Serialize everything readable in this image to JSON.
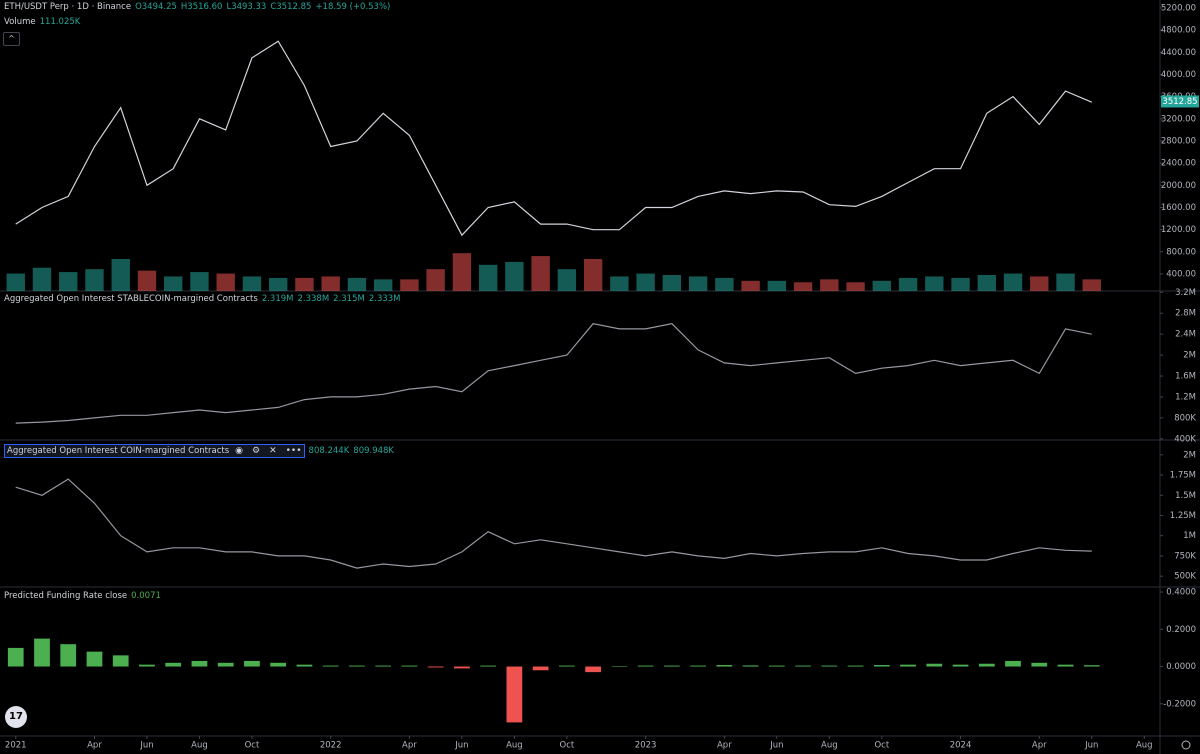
{
  "chart_data": [
    {
      "type": "line",
      "title": "ETH/USDT Perp · 1D · Binance",
      "legend": [
        "O3494.25",
        "H3516.60",
        "L3493.33",
        "C3512.85",
        "+18.59 (+0.53%)"
      ],
      "color": "#d1d4dc",
      "x": [
        0,
        1,
        2,
        3,
        4,
        5,
        6,
        7,
        8,
        9,
        10,
        11,
        12,
        13,
        14,
        15,
        16,
        17,
        18,
        19,
        20,
        21,
        22,
        23,
        24,
        25,
        26,
        27,
        28,
        29,
        30,
        31,
        32,
        33,
        34,
        35,
        36,
        37,
        38,
        39,
        40,
        41
      ],
      "values": [
        1300,
        1600,
        1800,
        2700,
        3400,
        2000,
        2300,
        3200,
        3000,
        4300,
        4600,
        3800,
        2700,
        2800,
        3300,
        2900,
        2000,
        1100,
        1600,
        1700,
        1300,
        1300,
        1200,
        1200,
        1600,
        1600,
        1800,
        1900,
        1850,
        1900,
        1880,
        1650,
        1620,
        1800,
        2050,
        2300,
        2300,
        3300,
        3600,
        3100,
        3700,
        3500
      ],
      "xlim": [
        -0.6,
        43.6
      ],
      "ylim": [
        93,
        5344
      ],
      "yticks": [
        {
          "value": 400,
          "label": "400.00"
        },
        {
          "value": 800,
          "label": "800.00"
        },
        {
          "value": 1200,
          "label": "1200.00"
        },
        {
          "value": 1600,
          "label": "1600.00"
        },
        {
          "value": 2000,
          "label": "2000.00"
        },
        {
          "value": 2400,
          "label": "2400.00"
        },
        {
          "value": 2800,
          "label": "2800.00"
        },
        {
          "value": 3200,
          "label": "3200.00"
        },
        {
          "value": 3600,
          "label": "3600.00"
        },
        {
          "value": 4000,
          "label": "4000.00"
        },
        {
          "value": 4400,
          "label": "4400.00"
        },
        {
          "value": 4800,
          "label": "4800.00"
        },
        {
          "value": 5200,
          "label": "5200.00"
        }
      ],
      "last_price": {
        "value": 3512.85,
        "label": "3512.85"
      },
      "volume": {
        "title": "Volume",
        "legend": "111.025K",
        "up_color": "#26a69a",
        "down_color": "#ef5350",
        "ylim": [
          0,
          20000000
        ],
        "values": [
          1200000,
          1600000,
          1300000,
          1500000,
          2200000,
          1400000,
          1000000,
          1300000,
          1200000,
          1000000,
          900000,
          900000,
          1000000,
          900000,
          800000,
          800000,
          1500000,
          2600000,
          1800000,
          2000000,
          2400000,
          1500000,
          2200000,
          1000000,
          1200000,
          1100000,
          1000000,
          900000,
          700000,
          700000,
          600000,
          800000,
          600000,
          700000,
          900000,
          1000000,
          900000,
          1100000,
          1200000,
          1000000,
          1200000,
          800000
        ]
      }
    },
    {
      "type": "line",
      "title": "Aggregated Open Interest STABLECOIN-margined Contracts",
      "legend": [
        "2.319M",
        "2.338M",
        "2.315M",
        "2.333M"
      ],
      "color": "#9598a1",
      "x": [
        0,
        1,
        2,
        3,
        4,
        5,
        6,
        7,
        8,
        9,
        10,
        11,
        12,
        13,
        14,
        15,
        16,
        17,
        18,
        19,
        20,
        21,
        22,
        23,
        24,
        25,
        26,
        27,
        28,
        29,
        30,
        31,
        32,
        33,
        34,
        35,
        36,
        37,
        38,
        39,
        40,
        41
      ],
      "values": [
        700000,
        720000,
        750000,
        800000,
        850000,
        850000,
        900000,
        950000,
        900000,
        950000,
        1000000,
        1150000,
        1200000,
        1200000,
        1250000,
        1350000,
        1400000,
        1300000,
        1700000,
        1800000,
        1900000,
        2000000,
        2600000,
        2500000,
        2500000,
        2600000,
        2100000,
        1850000,
        1800000,
        1850000,
        1900000,
        1950000,
        1650000,
        1750000,
        1800000,
        1900000,
        1800000,
        1850000,
        1900000,
        1650000,
        2500000,
        2400000
      ],
      "xlim": [
        -0.6,
        43.6
      ],
      "ylim": [
        377000,
        3225000
      ],
      "yticks": [
        {
          "value": 400000,
          "label": "400K"
        },
        {
          "value": 800000,
          "label": "800K"
        },
        {
          "value": 1200000,
          "label": "1.2M"
        },
        {
          "value": 1600000,
          "label": "1.6M"
        },
        {
          "value": 2000000,
          "label": "2M"
        },
        {
          "value": 2400000,
          "label": "2.4M"
        },
        {
          "value": 2800000,
          "label": "2.8M"
        },
        {
          "value": 3200000,
          "label": "3.2M"
        }
      ]
    },
    {
      "type": "line",
      "title": "Aggregated Open Interest COIN-margined Contracts",
      "legend": [
        "808.244K",
        "809.948K"
      ],
      "color": "#9598a1",
      "x": [
        0,
        1,
        2,
        3,
        4,
        5,
        6,
        7,
        8,
        9,
        10,
        11,
        12,
        13,
        14,
        15,
        16,
        17,
        18,
        19,
        20,
        21,
        22,
        23,
        24,
        25,
        26,
        27,
        28,
        29,
        30,
        31,
        32,
        33,
        34,
        35,
        36,
        37,
        38,
        39,
        40,
        41
      ],
      "values": [
        1600000,
        1500000,
        1700000,
        1400000,
        1000000,
        800000,
        850000,
        850000,
        800000,
        800000,
        750000,
        750000,
        700000,
        600000,
        650000,
        620000,
        650000,
        800000,
        1050000,
        900000,
        950000,
        900000,
        850000,
        800000,
        750000,
        800000,
        750000,
        720000,
        780000,
        750000,
        780000,
        800000,
        800000,
        850000,
        780000,
        750000,
        700000,
        700000,
        780000,
        850000,
        820000,
        810000
      ],
      "xlim": [
        -0.6,
        43.6
      ],
      "ylim": [
        366000,
        2183000
      ],
      "yticks": [
        {
          "value": 500000,
          "label": "500K"
        },
        {
          "value": 750000,
          "label": "750K"
        },
        {
          "value": 1000000,
          "label": "1M"
        },
        {
          "value": 1250000,
          "label": "1.25M"
        },
        {
          "value": 1500000,
          "label": "1.5M"
        },
        {
          "value": 1750000,
          "label": "1.75M"
        },
        {
          "value": 2000000,
          "label": "2M"
        }
      ]
    },
    {
      "type": "bar",
      "title": "Predicted Funding Rate close",
      "legend": [
        "0.0071"
      ],
      "color": "#4caf50",
      "negative_color": "#ef5350",
      "x": [
        0,
        1,
        2,
        3,
        4,
        5,
        6,
        7,
        8,
        9,
        10,
        11,
        12,
        13,
        14,
        15,
        16,
        17,
        18,
        19,
        20,
        21,
        22,
        23,
        24,
        25,
        26,
        27,
        28,
        29,
        30,
        31,
        32,
        33,
        34,
        35,
        36,
        37,
        38,
        39,
        40,
        41
      ],
      "values": [
        0.1,
        0.15,
        0.12,
        0.08,
        0.06,
        0.01,
        0.02,
        0.03,
        0.02,
        0.03,
        0.02,
        0.01,
        0.005,
        0.005,
        0.005,
        0.005,
        -0.005,
        -0.01,
        0.005,
        -0.3,
        -0.02,
        0.005,
        -0.03,
        0.002,
        0.005,
        0.005,
        0.005,
        0.008,
        0.006,
        0.005,
        0.005,
        0.005,
        0.005,
        0.008,
        0.01,
        0.015,
        0.01,
        0.015,
        0.03,
        0.02,
        0.01,
        0.0071
      ],
      "xlim": [
        -0.6,
        43.6
      ],
      "ylim": [
        -0.373,
        0.427
      ],
      "yticks": [
        {
          "value": -0.2,
          "label": "-0.2000"
        },
        {
          "value": 0,
          "label": "0.0000"
        },
        {
          "value": 0.2,
          "label": "0.2000"
        },
        {
          "value": 0.4,
          "label": "0.4000"
        }
      ],
      "xticks": [
        {
          "value": 0,
          "label": "2021"
        },
        {
          "value": 3,
          "label": "Apr"
        },
        {
          "value": 5,
          "label": "Jun"
        },
        {
          "value": 7,
          "label": "Aug"
        },
        {
          "value": 9,
          "label": "Oct"
        },
        {
          "value": 12,
          "label": "2022"
        },
        {
          "value": 15,
          "label": "Apr"
        },
        {
          "value": 17,
          "label": "Jun"
        },
        {
          "value": 19,
          "label": "Aug"
        },
        {
          "value": 21,
          "label": "Oct"
        },
        {
          "value": 24,
          "label": "2023"
        },
        {
          "value": 27,
          "label": "Apr"
        },
        {
          "value": 29,
          "label": "Jun"
        },
        {
          "value": 31,
          "label": "Aug"
        },
        {
          "value": 33,
          "label": "Oct"
        },
        {
          "value": 36,
          "label": "2024"
        },
        {
          "value": 39,
          "label": "Apr"
        },
        {
          "value": 41,
          "label": "Jun"
        },
        {
          "value": 43,
          "label": "Aug"
        }
      ]
    }
  ]
}
